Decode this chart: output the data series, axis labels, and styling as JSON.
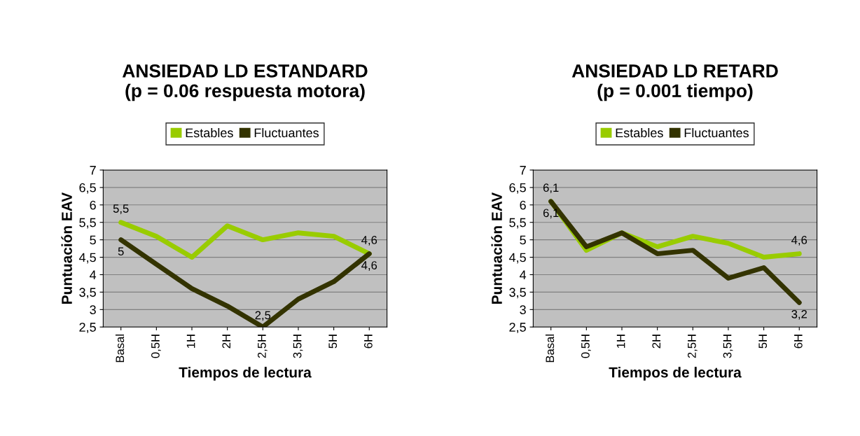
{
  "chart_data": [
    {
      "type": "line",
      "title": "ANSIEDAD LD ESTANDARD\n(p = 0.06 respuesta motora)",
      "xlabel": "Tiempos de lectura",
      "ylabel": "Puntuación EAV",
      "categories": [
        "Basal",
        "0,5H",
        "1H",
        "2H",
        "2,5H",
        "3,5H",
        "5H",
        "6H"
      ],
      "series": [
        {
          "name": "Estables",
          "color": "#99cc00",
          "values": [
            5.5,
            5.1,
            4.5,
            5.4,
            5.0,
            5.2,
            5.1,
            4.6
          ],
          "value_labels": [
            "5,5",
            null,
            null,
            null,
            null,
            null,
            null,
            "4,6"
          ]
        },
        {
          "name": "Fluctuantes",
          "color": "#333300",
          "values": [
            5.0,
            4.3,
            3.6,
            3.1,
            2.5,
            3.3,
            3.8,
            4.6
          ],
          "value_labels": [
            "5",
            null,
            null,
            null,
            "2,5",
            null,
            null,
            "4,6"
          ]
        }
      ],
      "ylim": [
        2.5,
        7
      ],
      "yticks": [
        {
          "value": 2.5,
          "label": "2,5"
        },
        3,
        {
          "value": 3.5,
          "label": "3,5"
        },
        4,
        {
          "value": 4.5,
          "label": "4,5"
        },
        5,
        {
          "value": 5.5,
          "label": "5,5"
        },
        6,
        {
          "value": 6.5,
          "label": "6,5"
        },
        7
      ],
      "grid": "y",
      "legend": "top"
    },
    {
      "type": "line",
      "title": "ANSIEDAD LD RETARD\n(p = 0.001 tiempo)",
      "xlabel": "Tiempos de lectura",
      "ylabel": "Puntuación EAV",
      "categories": [
        "Basal",
        "0,5H",
        "1H",
        "2H",
        "2,5H",
        "3,5H",
        "5H",
        "6H"
      ],
      "series": [
        {
          "name": "Estables",
          "color": "#99cc00",
          "values": [
            6.1,
            4.7,
            5.2,
            4.8,
            5.1,
            4.9,
            4.5,
            4.6
          ],
          "value_labels": [
            "6,1",
            null,
            null,
            null,
            null,
            null,
            null,
            "4,6"
          ]
        },
        {
          "name": "Fluctuantes",
          "color": "#333300",
          "values": [
            6.1,
            4.8,
            5.2,
            4.6,
            4.7,
            3.9,
            4.2,
            3.2
          ],
          "value_labels": [
            "6,1",
            null,
            null,
            null,
            null,
            null,
            null,
            "3,2"
          ]
        }
      ],
      "ylim": [
        2.5,
        7
      ],
      "yticks": [
        {
          "value": 2.5,
          "label": "2,5"
        },
        3,
        {
          "value": 3.5,
          "label": "3,5"
        },
        4,
        {
          "value": 4.5,
          "label": "4,5"
        },
        5,
        {
          "value": 5.5,
          "label": "5,5"
        },
        6,
        {
          "value": 6.5,
          "label": "6,5"
        },
        7
      ],
      "grid": "y",
      "legend": "top"
    }
  ]
}
